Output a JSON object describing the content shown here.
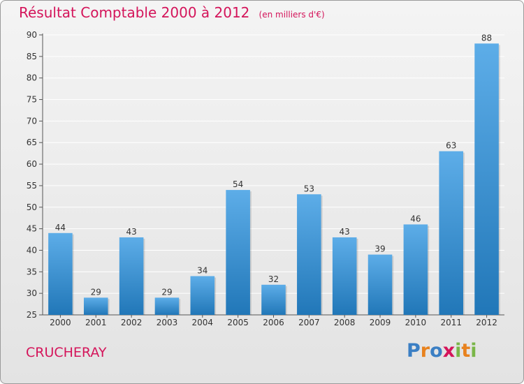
{
  "chart_data": {
    "type": "bar",
    "title": "Résultat Comptable 2000 à 2012",
    "unit_label": "(en milliers d'€)",
    "categories": [
      "2000",
      "2001",
      "2002",
      "2003",
      "2004",
      "2005",
      "2006",
      "2007",
      "2008",
      "2009",
      "2010",
      "2011",
      "2012"
    ],
    "values": [
      44,
      29,
      43,
      29,
      34,
      54,
      32,
      53,
      43,
      39,
      46,
      63,
      88
    ],
    "ylim": [
      25,
      90
    ],
    "yticks": [
      25,
      30,
      35,
      40,
      45,
      50,
      55,
      60,
      65,
      70,
      75,
      80,
      85,
      90
    ],
    "xlabel": "",
    "ylabel": "",
    "grid": true
  },
  "footer": {
    "town": "CRUCHERAY",
    "logo_letters": [
      "P",
      "r",
      "o",
      "x",
      "i",
      "t",
      "i"
    ]
  },
  "colors": {
    "title": "#d4145a",
    "bar_light": "#5dade8",
    "bar_dark": "#2177b8",
    "logo": [
      "#3b7fc4",
      "#e8821e",
      "#3b7fc4",
      "#d4145a",
      "#7ab648",
      "#e8821e",
      "#7ab648"
    ]
  }
}
